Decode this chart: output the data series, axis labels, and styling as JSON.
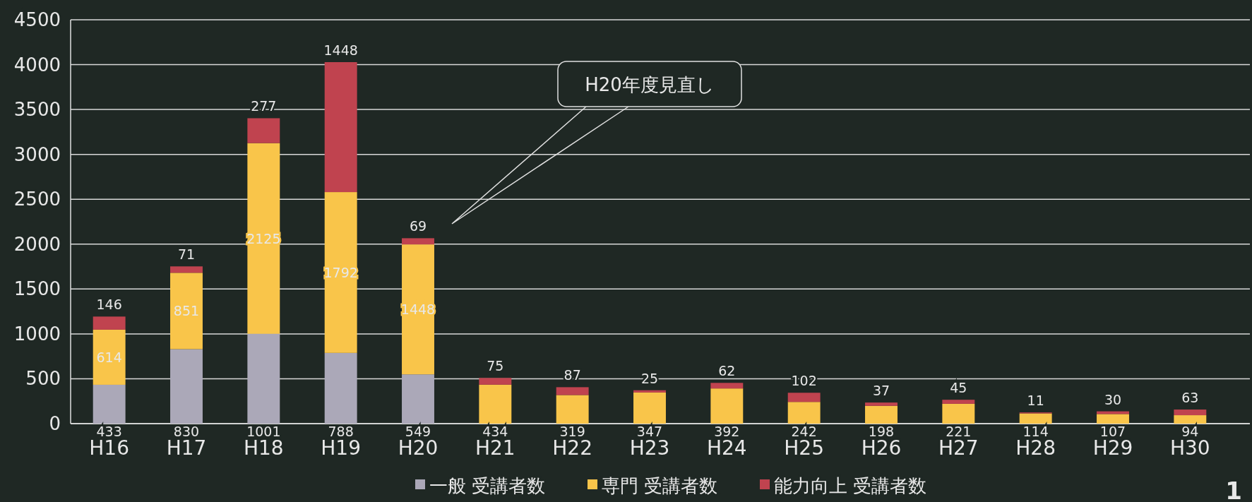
{
  "chart_data": {
    "type": "bar",
    "stacked": true,
    "categories": [
      "H16",
      "H17",
      "H18",
      "H19",
      "H20",
      "H21",
      "H22",
      "H23",
      "H24",
      "H25",
      "H26",
      "H27",
      "H28",
      "H29",
      "H30"
    ],
    "series": [
      {
        "name": "一般 受講者数",
        "color": "#aba8b8",
        "values": [
          433,
          830,
          1001,
          788,
          549,
          null,
          null,
          null,
          null,
          null,
          null,
          null,
          null,
          null,
          null
        ]
      },
      {
        "name": "専門 受講者数",
        "color": "#f9c54a",
        "values": [
          614,
          851,
          2125,
          1792,
          1448,
          434,
          319,
          347,
          392,
          242,
          198,
          221,
          114,
          107,
          94
        ]
      },
      {
        "name": "能力向上 受講者数",
        "color": "#c0434f",
        "values": [
          146,
          71,
          277,
          1448,
          69,
          75,
          87,
          25,
          62,
          102,
          37,
          45,
          11,
          30,
          63
        ]
      }
    ],
    "ylim": [
      0,
      4500
    ],
    "yticks": [
      0,
      500,
      1000,
      1500,
      2000,
      2500,
      3000,
      3500,
      4000,
      4500
    ],
    "grid": "y",
    "legend": "bottom",
    "data_labels": true,
    "annotations": [
      "H20年度見直し",
      "1"
    ]
  }
}
